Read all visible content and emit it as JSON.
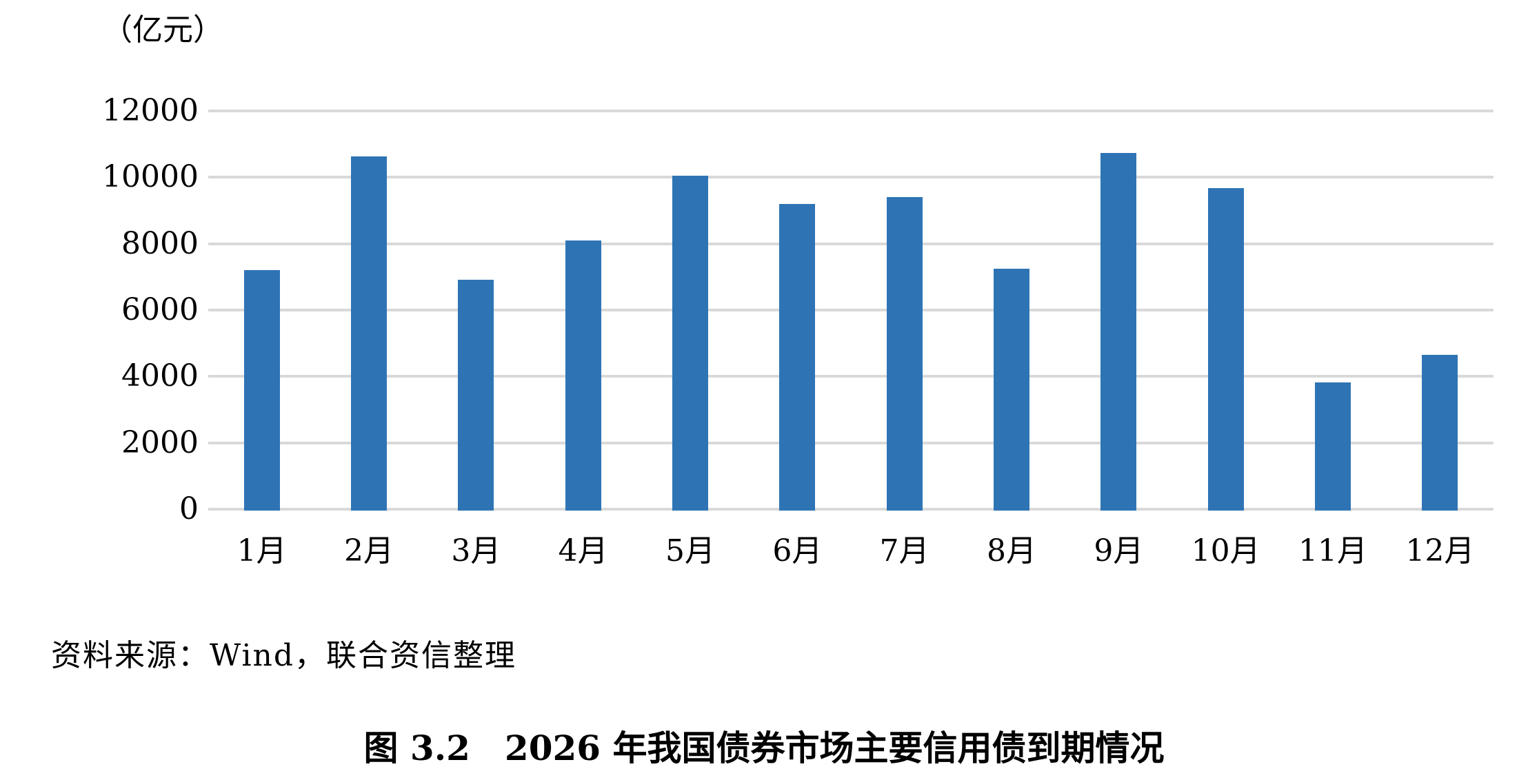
{
  "unit_label": "（亿元）",
  "source_note": "资料来源：Wind，联合资信整理",
  "caption": "图 3.2　2026 年我国债券市场主要信用债到期情况",
  "colors": {
    "bar": "#2E74B5",
    "gridline": "#D9D9D9",
    "text": "#000000"
  },
  "chart_data": {
    "type": "bar",
    "title": "图 3.2　2026 年我国债券市场主要信用债到期情况",
    "categories": [
      "1月",
      "2月",
      "3月",
      "4月",
      "5月",
      "6月",
      "7月",
      "8月",
      "9月",
      "10月",
      "11月",
      "12月"
    ],
    "values": [
      7250,
      10670,
      6960,
      8140,
      10080,
      9240,
      9440,
      7280,
      10780,
      9720,
      3870,
      4700
    ],
    "xlabel": "",
    "ylabel": "（亿元）",
    "ylim": [
      0,
      12000
    ],
    "yticks": [
      0,
      2000,
      4000,
      6000,
      8000,
      10000,
      12000
    ],
    "grid": true,
    "legend": false,
    "source": "资料来源：Wind，联合资信整理"
  }
}
